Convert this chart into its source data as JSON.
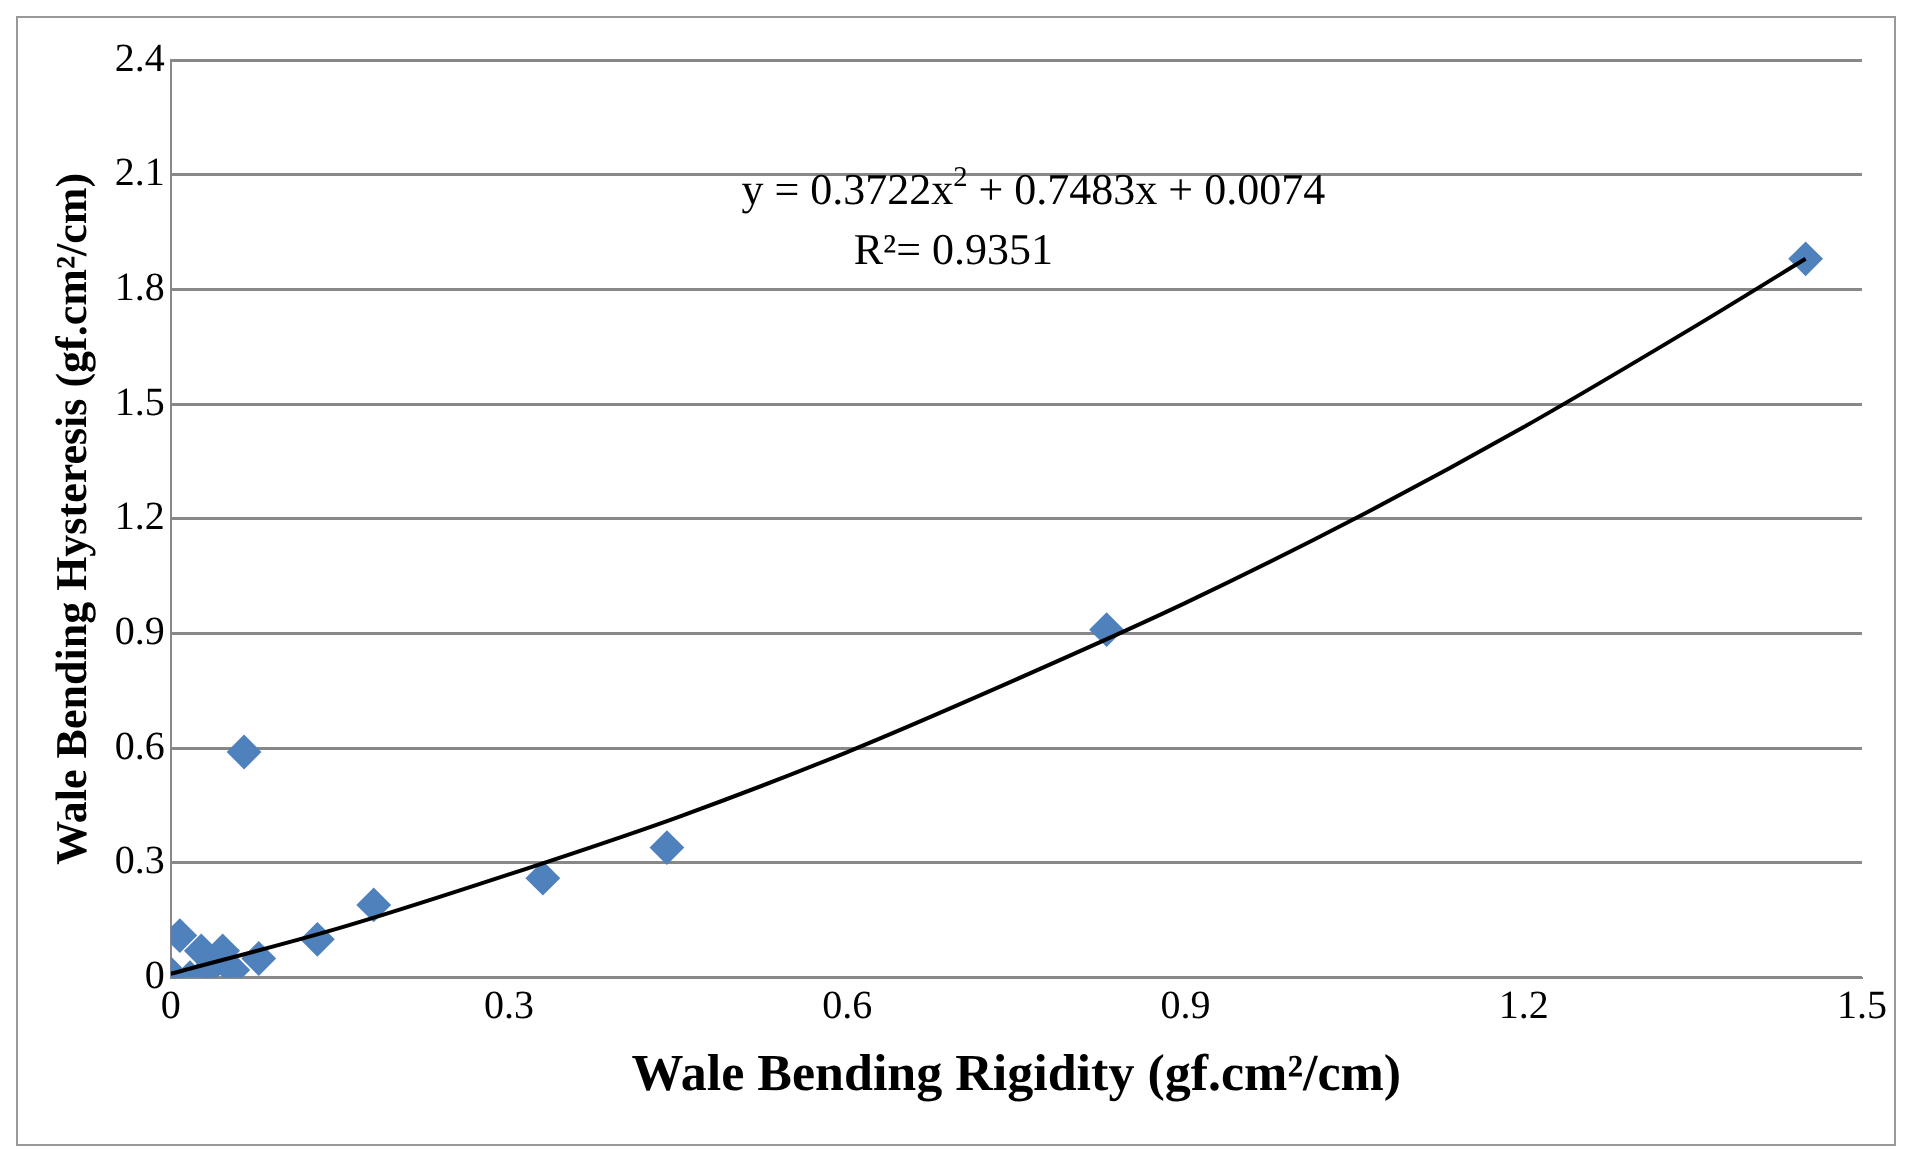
{
  "chart_data": {
    "type": "scatter",
    "xlabel": "Wale Bending Rigidity (gf.cm²/cm)",
    "ylabel": "Wale Bending Hysteresis (gf.cm²/cm)",
    "xlim": [
      0,
      1.5
    ],
    "xticks": [
      0,
      0.3,
      0.6,
      0.9,
      1.2,
      1.5
    ],
    "ylim": [
      0,
      2.4
    ],
    "yticks": [
      0,
      0.3,
      0.6,
      0.9,
      1.2,
      1.5,
      1.8,
      2.1,
      2.4
    ],
    "grid": "y",
    "legend": false,
    "marker": "diamond",
    "annotations": [
      "y = 0.3722x$^{2}$ + 0.7483x + 0.0074",
      "R²= 0.9351"
    ],
    "series": [
      {
        "color": "#4f81bd",
        "x": [
          1.45,
          0.83,
          0.44,
          0.33,
          0.18,
          0.13,
          0.065,
          0.078,
          0.046,
          0.027,
          0.008,
          0,
          0.017,
          0.036,
          0.055
        ],
        "values": [
          1.88,
          0.91,
          0.34,
          0.26,
          0.19,
          0.1,
          0.59,
          0.05,
          0.07,
          0.07,
          0.11,
          0.01,
          0,
          0.03,
          0.02
        ]
      },
      {
        "type": "line",
        "color": "#000000",
        "marker": "none",
        "x": [
          0,
          0.15,
          0.3,
          0.45,
          0.6,
          0.75,
          0.9,
          1.05,
          1.2,
          1.35,
          1.45
        ],
        "values": [
          0.01,
          0.13,
          0.27,
          0.42,
          0.59,
          0.78,
          0.98,
          1.2,
          1.44,
          1.7,
          1.88
        ]
      }
    ]
  }
}
